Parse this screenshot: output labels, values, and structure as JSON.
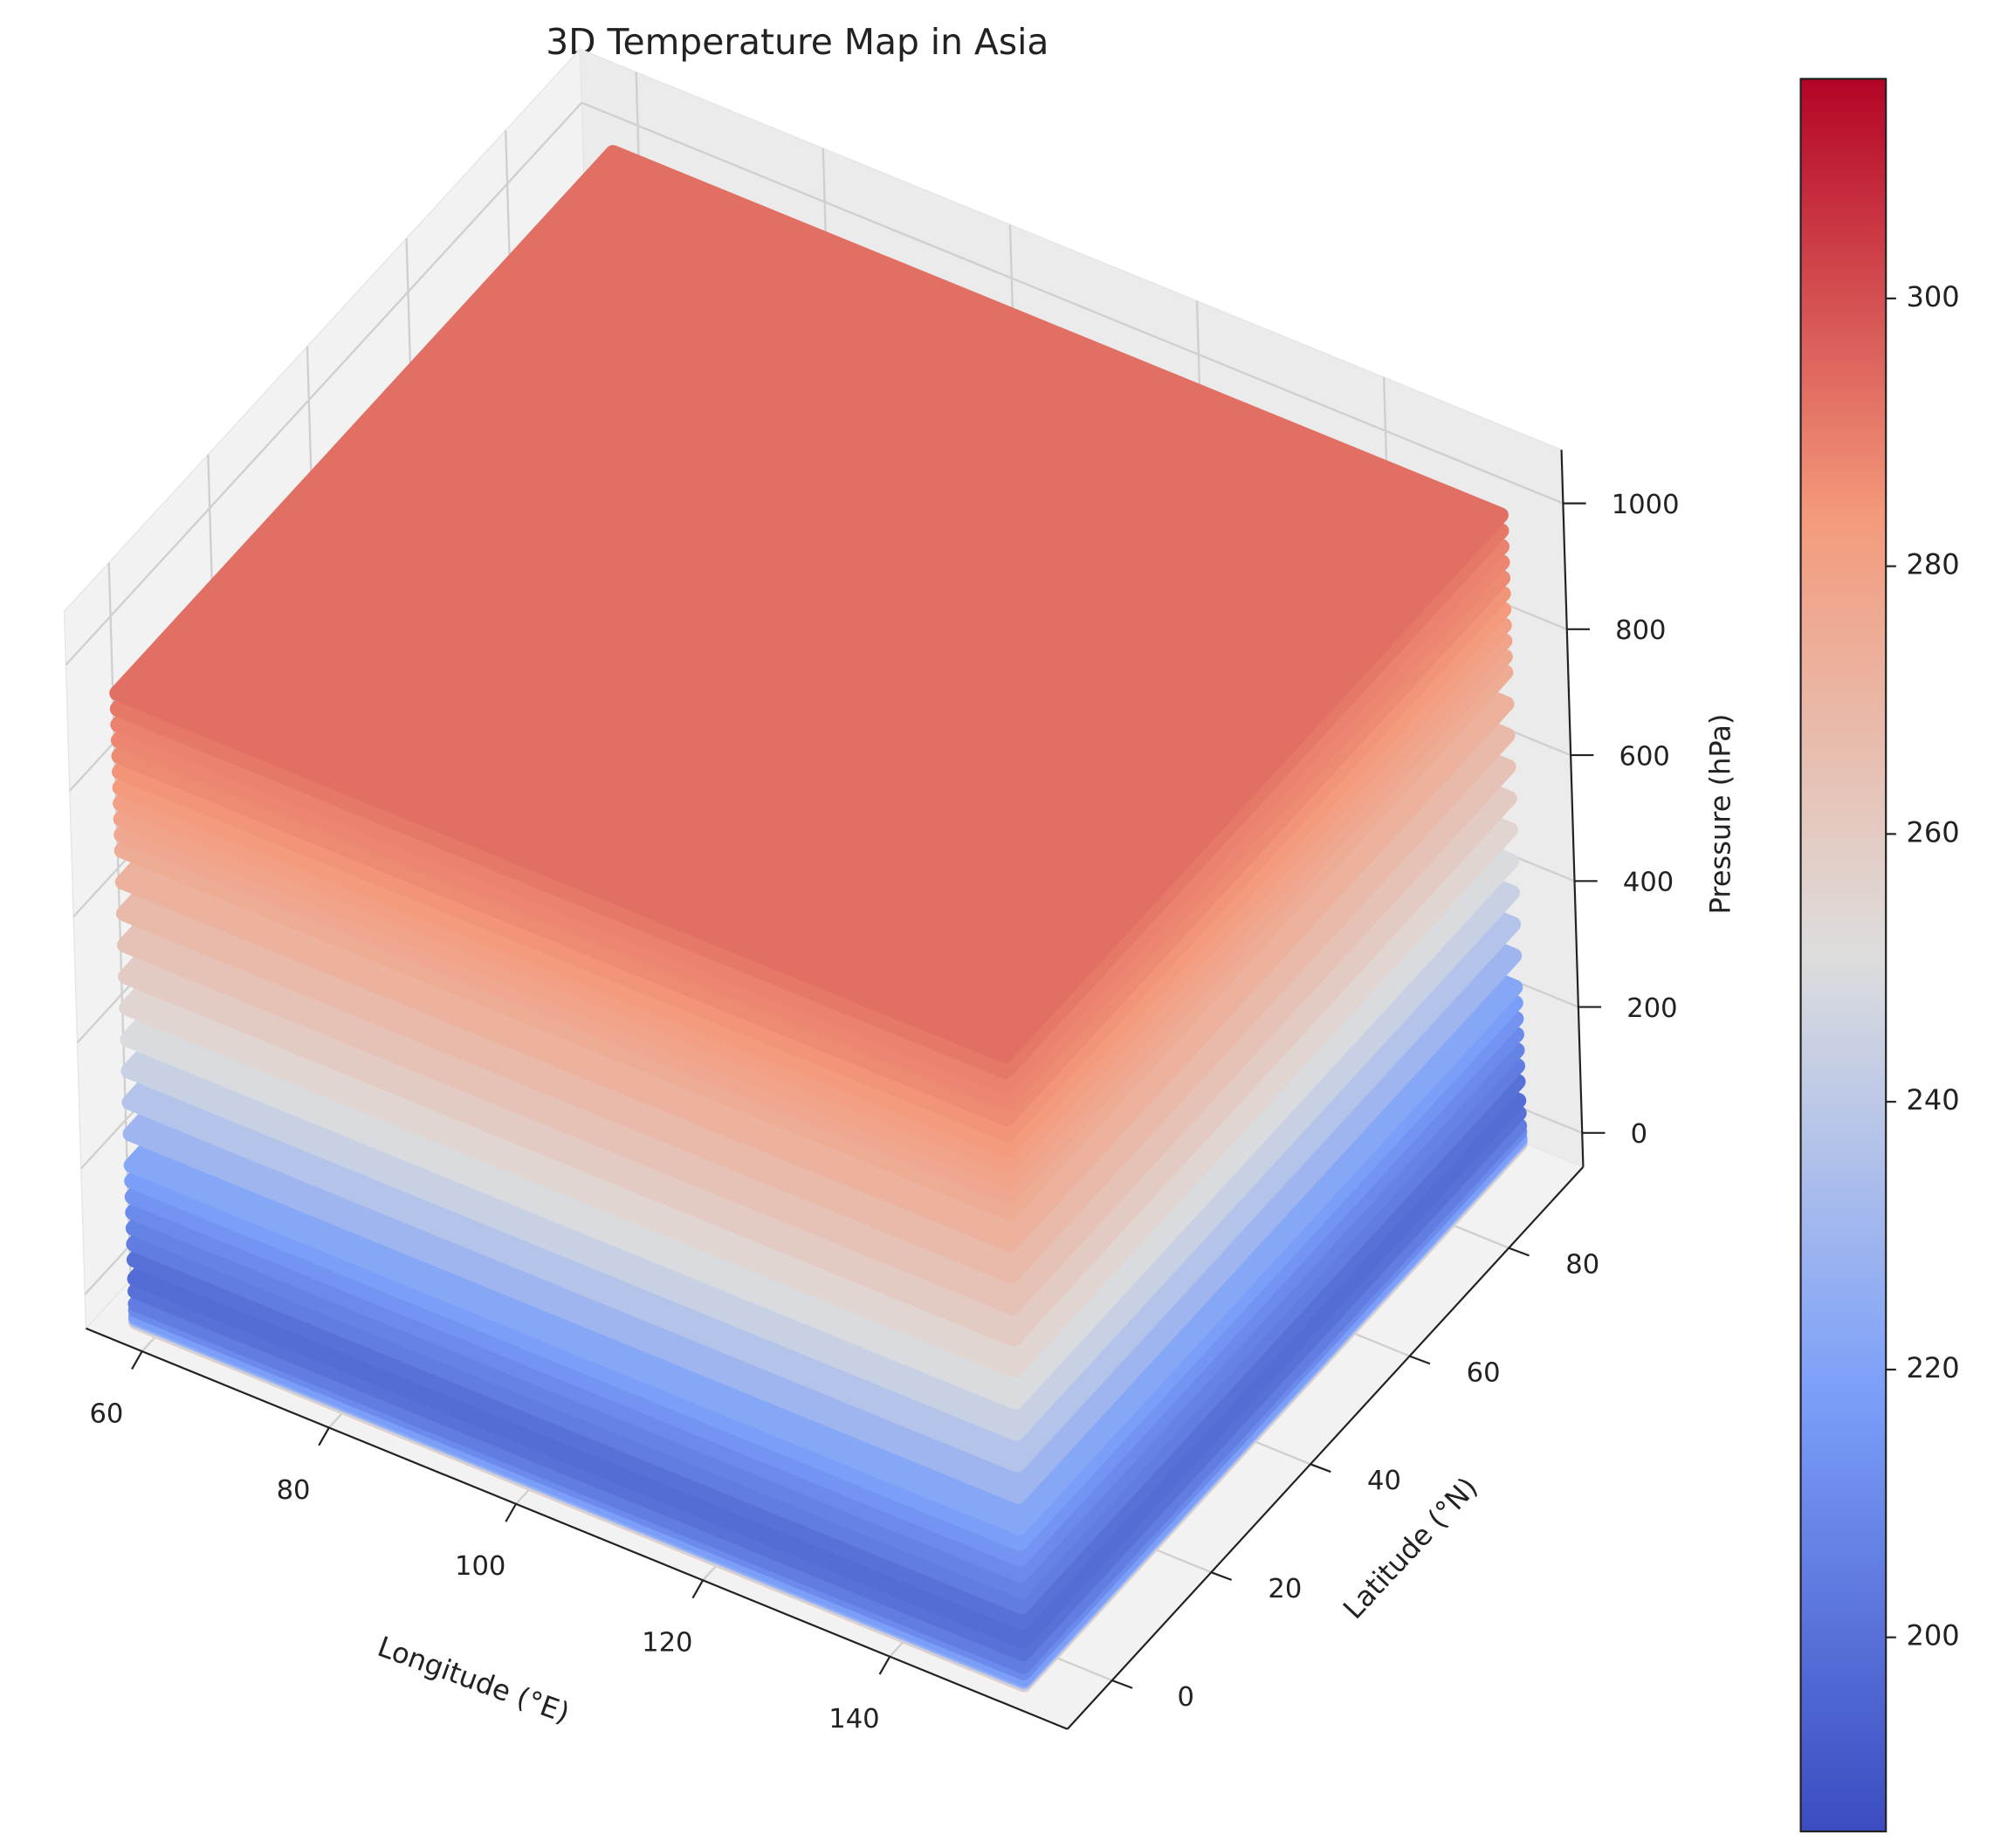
{
  "chart_data": {
    "type": "scatter3d",
    "title": "3D Temperature Map in Asia",
    "xlabel": "Longitude (°E)",
    "ylabel": "Latitude (°N)",
    "zlabel": "Pressure (hPa)",
    "xlim": [
      54,
      159
    ],
    "ylim": [
      -9,
      95
    ],
    "zlim": [
      -54,
      1085
    ],
    "xticks": [
      60,
      80,
      100,
      120,
      140
    ],
    "yticks": [
      0,
      20,
      40,
      60,
      80
    ],
    "zticks": [
      0,
      200,
      400,
      600,
      800,
      1000
    ],
    "longitudes": [
      60,
      155
    ],
    "latitudes": [
      -10,
      90
    ],
    "pressure_levels": [
      1,
      2,
      3,
      5,
      7,
      10,
      20,
      30,
      50,
      70,
      100,
      125,
      150,
      175,
      200,
      225,
      250,
      300,
      350,
      400,
      450,
      500,
      550,
      600,
      650,
      700,
      750,
      775,
      800,
      825,
      850,
      875,
      900,
      925,
      950,
      975,
      1000
    ],
    "values": [
      265,
      255,
      245,
      235,
      225,
      218,
      210,
      205,
      200,
      198,
      200,
      205,
      207,
      210,
      214,
      218,
      222,
      230,
      237,
      244,
      250,
      255,
      260,
      264,
      268,
      272,
      275,
      277,
      279,
      281,
      283,
      285,
      287,
      288,
      289,
      291,
      293
    ],
    "colormap": "coolwarm",
    "clim": [
      185.5,
      316.4
    ],
    "colorbar_ticks": [
      200,
      220,
      240,
      260,
      280,
      300
    ],
    "grid": true
  }
}
